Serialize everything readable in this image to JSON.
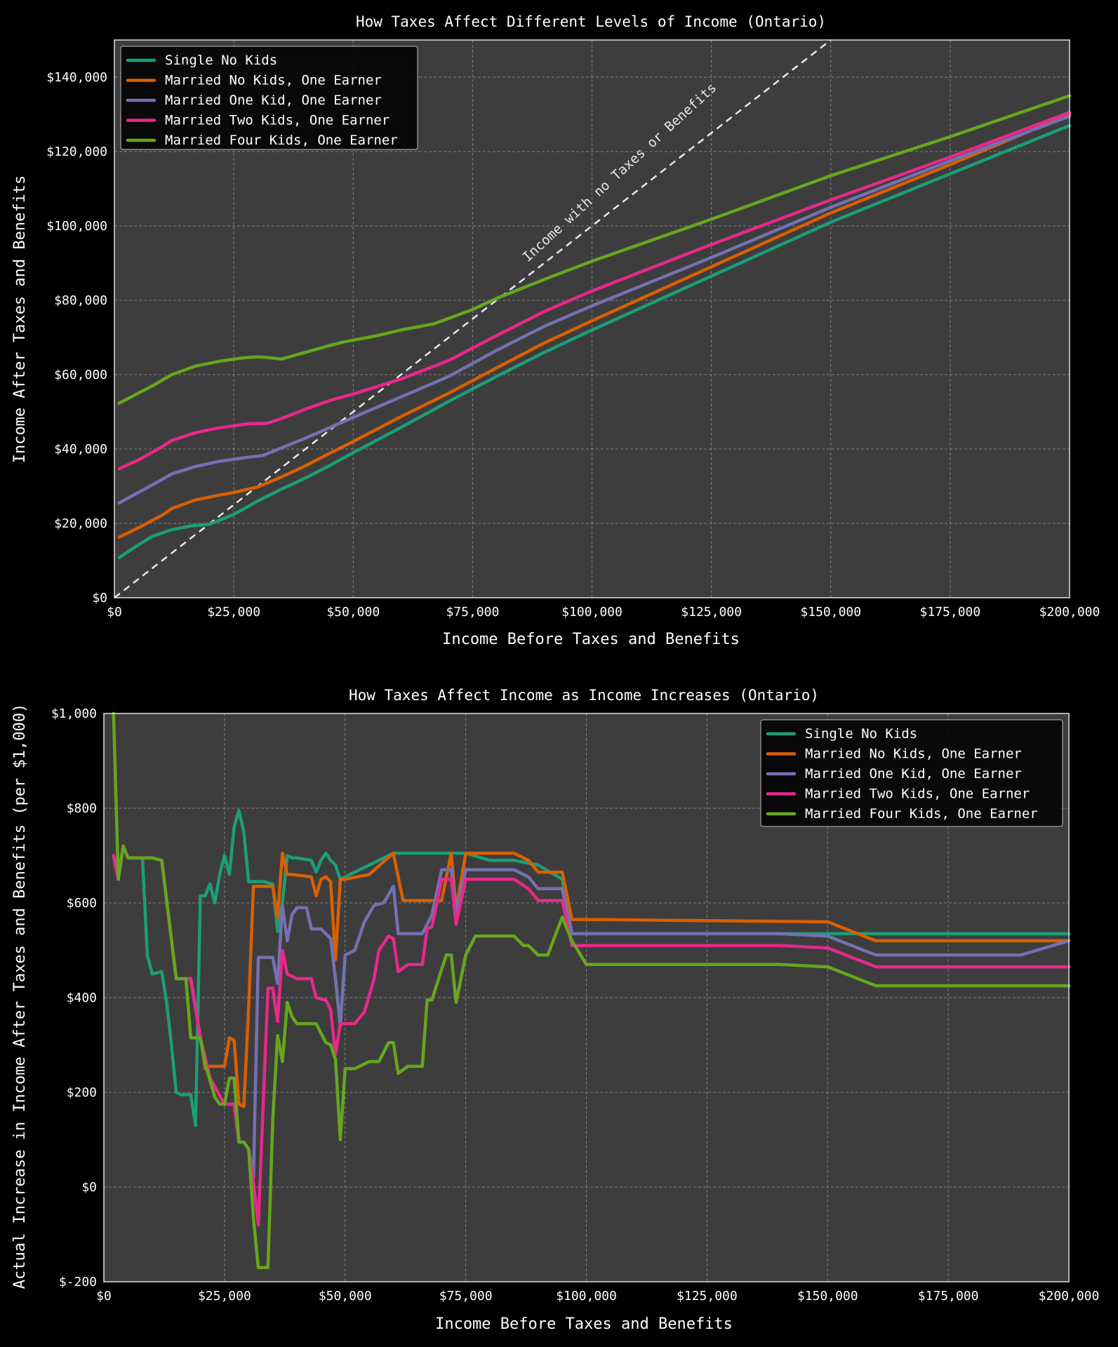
{
  "chart_data": [
    {
      "type": "line",
      "title": "How Taxes Affect Different Levels of Income (Ontario)",
      "xlabel": "Income Before Taxes and Benefits",
      "ylabel": "Income After Taxes and Benefits",
      "xlim": [
        0,
        200000
      ],
      "ylim": [
        0,
        150000
      ],
      "x_ticks": [
        0,
        25000,
        50000,
        75000,
        100000,
        125000,
        150000,
        175000,
        200000
      ],
      "x_tick_labels": [
        "$0",
        "$25,000",
        "$50,000",
        "$75,000",
        "$100,000",
        "$125,000",
        "$150,000",
        "$175,000",
        "$200,000"
      ],
      "y_ticks": [
        0,
        20000,
        40000,
        60000,
        80000,
        100000,
        120000,
        140000
      ],
      "y_tick_labels": [
        "$0",
        "$20,000",
        "$40,000",
        "$60,000",
        "$80,000",
        "$100,000",
        "$120,000",
        "$140,000"
      ],
      "grid": true,
      "legend_position": "top-left",
      "annotation": "Income with no Taxes or Benefits",
      "reference_line": {
        "x": [
          0,
          150000
        ],
        "y": [
          0,
          150000
        ],
        "style": "dashed",
        "color": "#e8e8e8"
      },
      "series": [
        {
          "name": "Single No Kids",
          "color": "#1b9e77",
          "x": [
            1000,
            5000,
            8000,
            12000,
            16000,
            20000,
            25000,
            30000,
            35000,
            40000,
            45000,
            50000,
            60000,
            70000,
            80000,
            90000,
            100000,
            125000,
            150000,
            175000,
            200000
          ],
          "y": [
            10800,
            14200,
            16500,
            18300,
            19300,
            19800,
            22400,
            26000,
            29200,
            32200,
            35500,
            39000,
            45800,
            52800,
            59500,
            66000,
            72000,
            86500,
            101000,
            114000,
            127000
          ]
        },
        {
          "name": "Married No Kids, One Earner",
          "color": "#d95f02",
          "x": [
            1000,
            5000,
            10000,
            12000,
            17000,
            22000,
            25000,
            30000,
            35000,
            40000,
            45000,
            50000,
            60000,
            70000,
            80000,
            90000,
            100000,
            125000,
            150000,
            175000,
            200000
          ],
          "y": [
            16300,
            18800,
            22200,
            24000,
            26300,
            27600,
            28300,
            29800,
            32500,
            35500,
            38800,
            42000,
            48700,
            55000,
            61800,
            68500,
            74500,
            89000,
            103500,
            116500,
            130000
          ]
        },
        {
          "name": "Married One Kid, One Earner",
          "color": "#7570b3",
          "x": [
            1000,
            5000,
            10000,
            12000,
            17000,
            22000,
            28000,
            31000,
            35000,
            40000,
            45000,
            50000,
            60000,
            70000,
            80000,
            90000,
            100000,
            125000,
            150000,
            175000,
            200000
          ],
          "y": [
            25500,
            28300,
            31800,
            33300,
            35300,
            36700,
            37800,
            38200,
            40300,
            42900,
            45700,
            48500,
            54000,
            59500,
            66500,
            73000,
            78500,
            91500,
            105000,
            117500,
            129500
          ]
        },
        {
          "name": "Married Two Kids, One Earner",
          "color": "#e7298a",
          "x": [
            1000,
            5000,
            10000,
            12000,
            17000,
            22000,
            28000,
            32000,
            35000,
            40000,
            45000,
            50000,
            60000,
            70000,
            80000,
            90000,
            100000,
            125000,
            150000,
            175000,
            200000
          ],
          "y": [
            34700,
            37000,
            40600,
            42300,
            44400,
            45700,
            46800,
            46900,
            48200,
            50700,
            53000,
            54800,
            58800,
            63800,
            70500,
            77000,
            82500,
            95000,
            107000,
            118500,
            130500
          ]
        },
        {
          "name": "Married Four Kids, One Earner",
          "color": "#66a61e",
          "x": [
            1000,
            5000,
            8000,
            12000,
            17000,
            22000,
            27000,
            30000,
            32000,
            35000,
            40000,
            45000,
            48000,
            55000,
            60000,
            67000,
            75000,
            80000,
            90000,
            100000,
            125000,
            150000,
            175000,
            200000
          ],
          "y": [
            52300,
            55000,
            57000,
            60000,
            62300,
            63600,
            64500,
            64800,
            64600,
            64200,
            66000,
            67800,
            68800,
            70500,
            72000,
            73700,
            77500,
            80500,
            85600,
            90500,
            101800,
            113500,
            124000,
            135000
          ]
        }
      ]
    },
    {
      "type": "line",
      "title": "How Taxes Affect Income as Income Increases (Ontario)",
      "xlabel": "Income Before Taxes and Benefits",
      "ylabel": "Actual Increase in Income After Taxes and Benefits (per $1,000)",
      "xlim": [
        0,
        200000
      ],
      "ylim": [
        -200,
        1000
      ],
      "x_ticks": [
        0,
        25000,
        50000,
        75000,
        100000,
        125000,
        150000,
        175000,
        200000
      ],
      "x_tick_labels": [
        "$0",
        "$25,000",
        "$50,000",
        "$75,000",
        "$100,000",
        "$125,000",
        "$150,000",
        "$175,000",
        "$200,000"
      ],
      "y_ticks": [
        -200,
        0,
        200,
        400,
        600,
        800,
        1000
      ],
      "y_tick_labels": [
        "$-200",
        "$0",
        "$200",
        "$400",
        "$600",
        "$800",
        "$1,000"
      ],
      "grid": true,
      "legend_position": "top-right",
      "series": [
        {
          "name": "Single No Kids",
          "color": "#1b9e77",
          "x": [
            2000,
            3000,
            4000,
            5000,
            8000,
            9000,
            10000,
            12000,
            13000,
            14000,
            15000,
            16000,
            17000,
            18000,
            19000,
            20000,
            21000,
            22000,
            23000,
            24000,
            25000,
            26000,
            27000,
            28000,
            29000,
            30000,
            31000,
            33000,
            35000,
            36000,
            37000,
            38000,
            39000,
            40000,
            43000,
            44000,
            45000,
            46000,
            47000,
            48000,
            49000,
            60000,
            70000,
            75000,
            80000,
            85000,
            90000,
            95000,
            97000,
            100000,
            150000,
            160000,
            200000
          ],
          "y": [
            700,
            650,
            720,
            695,
            695,
            490,
            450,
            455,
            390,
            300,
            200,
            195,
            195,
            195,
            130,
            615,
            615,
            640,
            600,
            660,
            700,
            660,
            760,
            795,
            750,
            645,
            645,
            645,
            640,
            540,
            600,
            700,
            695,
            695,
            690,
            665,
            690,
            705,
            690,
            680,
            650,
            705,
            705,
            705,
            690,
            690,
            680,
            650,
            535,
            535,
            535,
            535,
            535
          ]
        },
        {
          "name": "Married No Kids, One Earner",
          "color": "#d95f02",
          "x": [
            2000,
            3000,
            4000,
            5000,
            10000,
            12000,
            15000,
            18000,
            20000,
            21000,
            22000,
            24000,
            25000,
            26000,
            27000,
            28000,
            29000,
            30000,
            31000,
            32000,
            35000,
            36000,
            37000,
            38000,
            39000,
            43000,
            44000,
            45000,
            46000,
            47000,
            48000,
            49000,
            50000,
            55000,
            60000,
            62000,
            70000,
            72000,
            73000,
            75000,
            85000,
            88000,
            90000,
            95000,
            97000,
            100000,
            150000,
            160000,
            200000
          ],
          "y": [
            700,
            650,
            720,
            695,
            695,
            690,
            440,
            440,
            315,
            250,
            255,
            255,
            255,
            315,
            310,
            175,
            170,
            380,
            635,
            635,
            635,
            570,
            705,
            660,
            660,
            655,
            615,
            650,
            655,
            645,
            480,
            650,
            650,
            660,
            705,
            605,
            605,
            705,
            585,
            705,
            705,
            690,
            665,
            665,
            565,
            565,
            560,
            520,
            520
          ]
        },
        {
          "name": "Married One Kid, One Earner",
          "color": "#7570b3",
          "x": [
            2000,
            3000,
            4000,
            5000,
            10000,
            12000,
            15000,
            18000,
            20000,
            22000,
            25000,
            27000,
            28000,
            29000,
            30000,
            31000,
            32000,
            35000,
            36000,
            37000,
            38000,
            39000,
            40000,
            42000,
            43000,
            45000,
            47000,
            48000,
            49000,
            50000,
            52000,
            54000,
            56000,
            58000,
            60000,
            61000,
            66000,
            68000,
            70000,
            72000,
            73000,
            75000,
            85000,
            88000,
            90000,
            95000,
            97000,
            100000,
            140000,
            150000,
            160000,
            190000,
            200000
          ],
          "y": [
            700,
            650,
            720,
            695,
            695,
            690,
            440,
            440,
            315,
            230,
            175,
            175,
            95,
            95,
            80,
            20,
            485,
            485,
            430,
            595,
            520,
            575,
            590,
            590,
            545,
            545,
            525,
            440,
            340,
            490,
            500,
            560,
            595,
            600,
            635,
            535,
            535,
            575,
            670,
            670,
            580,
            670,
            670,
            655,
            630,
            630,
            535,
            535,
            535,
            530,
            490,
            490,
            520
          ]
        },
        {
          "name": "Married Two Kids, One Earner",
          "color": "#e7298a",
          "x": [
            2000,
            3000,
            4000,
            5000,
            10000,
            12000,
            15000,
            18000,
            20000,
            22000,
            25000,
            27000,
            28000,
            29000,
            30000,
            31000,
            32000,
            34000,
            35000,
            36000,
            37000,
            38000,
            39000,
            40000,
            43000,
            44000,
            46000,
            47000,
            48000,
            49000,
            52000,
            54000,
            56000,
            57000,
            59000,
            60000,
            61000,
            63000,
            66000,
            67000,
            68000,
            70000,
            71000,
            72000,
            73000,
            75000,
            85000,
            88000,
            90000,
            95000,
            97000,
            100000,
            140000,
            150000,
            160000,
            200000
          ],
          "y": [
            700,
            650,
            720,
            695,
            695,
            690,
            440,
            440,
            315,
            230,
            175,
            175,
            95,
            95,
            80,
            10,
            -80,
            420,
            420,
            350,
            500,
            450,
            445,
            440,
            440,
            400,
            395,
            375,
            280,
            345,
            345,
            370,
            440,
            500,
            530,
            525,
            455,
            470,
            470,
            545,
            550,
            650,
            650,
            650,
            555,
            650,
            650,
            630,
            605,
            605,
            510,
            510,
            510,
            505,
            465,
            465
          ]
        },
        {
          "name": "Married Four Kids, One Earner",
          "color": "#66a61e",
          "x": [
            2000,
            3000,
            4000,
            5000,
            10000,
            12000,
            15000,
            17000,
            18000,
            20000,
            21000,
            22000,
            23000,
            24000,
            25000,
            26000,
            27000,
            28000,
            29000,
            30000,
            31000,
            32000,
            33000,
            34000,
            35000,
            36000,
            37000,
            38000,
            39000,
            40000,
            44000,
            46000,
            47000,
            48000,
            49000,
            50000,
            52000,
            55000,
            57000,
            58000,
            59000,
            60000,
            61000,
            63000,
            66000,
            67000,
            68000,
            70000,
            71000,
            72000,
            73000,
            74000,
            75000,
            77000,
            85000,
            87000,
            88000,
            90000,
            92000,
            95000,
            97000,
            100000,
            140000,
            150000,
            160000,
            200000
          ],
          "y": [
            1000,
            650,
            720,
            695,
            695,
            690,
            440,
            440,
            315,
            315,
            260,
            225,
            190,
            175,
            175,
            230,
            230,
            95,
            95,
            80,
            -65,
            -170,
            -170,
            -170,
            140,
            320,
            265,
            390,
            360,
            345,
            345,
            305,
            300,
            270,
            100,
            250,
            250,
            265,
            265,
            285,
            305,
            305,
            240,
            255,
            255,
            395,
            395,
            460,
            490,
            490,
            390,
            440,
            490,
            530,
            530,
            510,
            510,
            490,
            490,
            570,
            520,
            470,
            470,
            465,
            425,
            425
          ]
        }
      ]
    }
  ]
}
